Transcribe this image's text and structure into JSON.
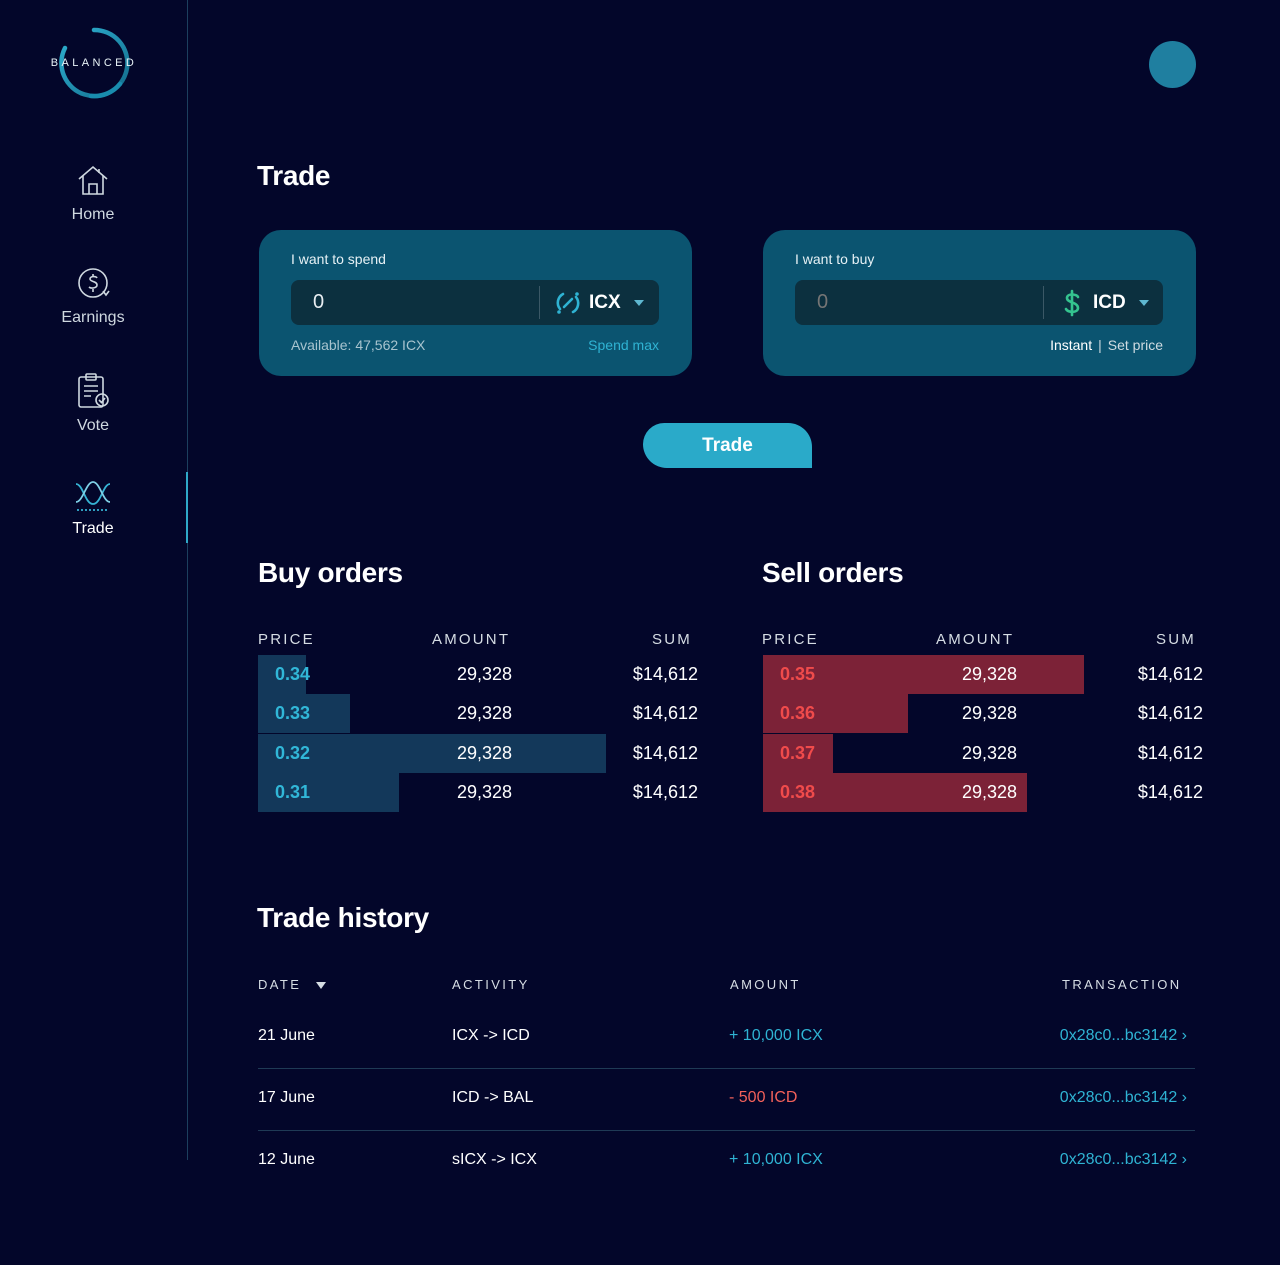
{
  "brand": {
    "logo_text": "BALANCED"
  },
  "nav": {
    "items": [
      {
        "label": "Home",
        "icon": "home-icon"
      },
      {
        "label": "Earnings",
        "icon": "earnings-icon"
      },
      {
        "label": "Vote",
        "icon": "vote-icon"
      },
      {
        "label": "Trade",
        "icon": "trade-icon",
        "active": true
      }
    ]
  },
  "page": {
    "title": "Trade"
  },
  "spend_panel": {
    "label": "I want to spend",
    "value": "0",
    "token": "ICX",
    "token_icon": "icx-icon",
    "available": "Available: 47,562 ICX",
    "spend_max": "Spend max"
  },
  "buy_panel": {
    "label": "I want to buy",
    "placeholder": "0",
    "token": "ICD",
    "token_icon": "dollar-icon",
    "mode_instant": "Instant",
    "mode_separator": "|",
    "mode_set_price": "Set price"
  },
  "trade_button": {
    "label": "Trade"
  },
  "buy_orders": {
    "title": "Buy orders",
    "headers": {
      "price": "PRICE",
      "amount": "AMOUNT",
      "sum": "SUM"
    },
    "rows": [
      {
        "price": "0.34",
        "amount": "29,328",
        "sum": "$14,612",
        "depth": 0.11
      },
      {
        "price": "0.33",
        "amount": "29,328",
        "sum": "$14,612",
        "depth": 0.21
      },
      {
        "price": "0.32",
        "amount": "29,328",
        "sum": "$14,612",
        "depth": 0.79
      },
      {
        "price": "0.31",
        "amount": "29,328",
        "sum": "$14,612",
        "depth": 0.32
      }
    ]
  },
  "sell_orders": {
    "title": "Sell orders",
    "headers": {
      "price": "PRICE",
      "amount": "AMOUNT",
      "sum": "SUM"
    },
    "rows": [
      {
        "price": "0.35",
        "amount": "29,328",
        "sum": "$14,612",
        "depth": 0.73
      },
      {
        "price": "0.36",
        "amount": "29,328",
        "sum": "$14,612",
        "depth": 0.33
      },
      {
        "price": "0.37",
        "amount": "29,328",
        "sum": "$14,612",
        "depth": 0.16
      },
      {
        "price": "0.38",
        "amount": "29,328",
        "sum": "$14,612",
        "depth": 0.6
      }
    ]
  },
  "trade_history": {
    "title": "Trade history",
    "headers": {
      "date": "DATE",
      "activity": "ACTIVITY",
      "amount": "AMOUNT",
      "transaction": "TRANSACTION"
    },
    "rows": [
      {
        "date": "21 June",
        "activity": "ICX -> ICD",
        "amount": "+ 10,000 ICX",
        "direction": "positive",
        "transaction": "0x28c0...bc3142 ›"
      },
      {
        "date": "17 June",
        "activity": "ICD -> BAL",
        "amount": "- 500 ICD",
        "direction": "negative",
        "transaction": "0x28c0...bc3142 ›"
      },
      {
        "date": "12 June",
        "activity": "sICX -> ICX",
        "amount": "+ 10,000 ICX",
        "direction": "positive",
        "transaction": "0x28c0...bc3142 ›"
      }
    ]
  },
  "colors": {
    "background": "#03062a",
    "panel": "#0b5470",
    "accent": "#2aaac9",
    "buy_depth": "#13385a",
    "sell_depth": "#7c2237",
    "sell_price": "#f04b4b",
    "negative": "#f2605a"
  }
}
